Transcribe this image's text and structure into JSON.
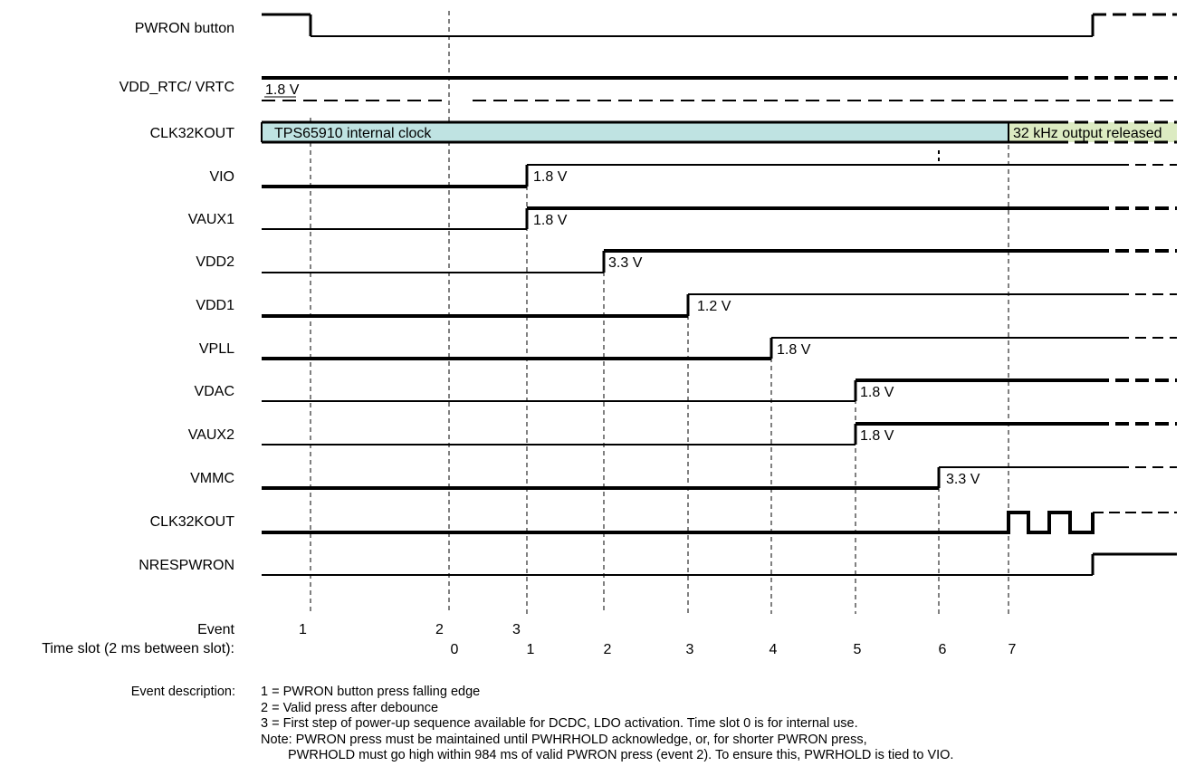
{
  "signals": [
    {
      "label": "PWRON button"
    },
    {
      "label": "VDD_RTC/ VRTC",
      "value": "1.8 V"
    },
    {
      "label": "CLK32KOUT",
      "bar_text": "TPS65910 internal clock",
      "released_text": "32 kHz output released"
    },
    {
      "label": "VIO",
      "value": "1.8 V",
      "slot": 1
    },
    {
      "label": "VAUX1",
      "value": "1.8 V",
      "slot": 1
    },
    {
      "label": "VDD2",
      "value": "3.3 V",
      "slot": 2
    },
    {
      "label": "VDD1",
      "value": "1.2 V",
      "slot": 3
    },
    {
      "label": "VPLL",
      "value": "1.8 V",
      "slot": 4
    },
    {
      "label": "VDAC",
      "value": "1.8 V",
      "slot": 5
    },
    {
      "label": "VAUX2",
      "value": "1.8 V",
      "slot": 5
    },
    {
      "label": "VMMC",
      "value": "3.3 V",
      "slot": 6
    },
    {
      "label": "CLK32KOUT",
      "slot": 7
    },
    {
      "label": "NRESPWRON"
    }
  ],
  "event_row_label": "Event",
  "timeslot_row_label": "Time slot (2 ms between slot):",
  "events": [
    "1",
    "2",
    "3"
  ],
  "time_slots": [
    "0",
    "1",
    "2",
    "3",
    "4",
    "5",
    "6",
    "7"
  ],
  "description": {
    "title": "Event description:",
    "lines": [
      "1 = PWRON button press falling edge",
      "2 = Valid press after debounce",
      "3 = First step of power-up sequence available for DCDC, LDO activation. Time slot 0 is for internal use.",
      "Note: PWRON press must be maintained until PWHRHOLD acknowledge, or, for shorter PWRON press,",
      "PWRHOLD must go high within 984 ms of valid PWRON press (event 2). To ensure this, PWRHOLD is tied to VIO."
    ]
  },
  "colors": {
    "internal_clock_fill": "#bfe3e2",
    "released_fill": "#dcebc2",
    "line": "#000000"
  }
}
